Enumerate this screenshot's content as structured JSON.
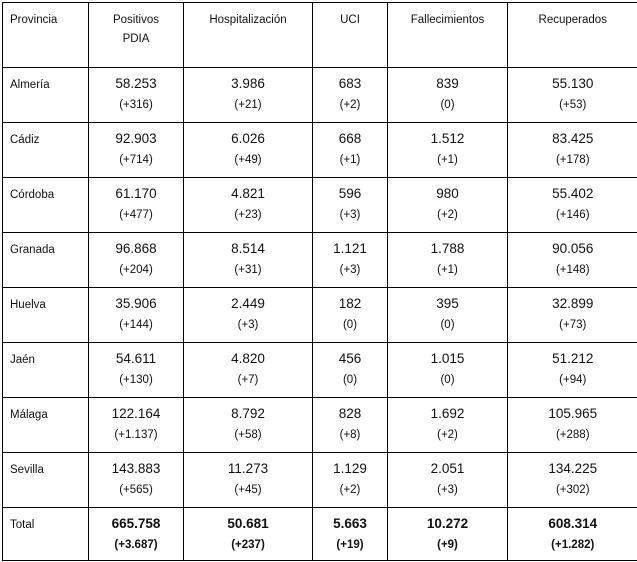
{
  "colors": {
    "text": "#111111",
    "border": "#000000",
    "background": "#ffffff"
  },
  "table": {
    "columns": [
      {
        "id": "provincia",
        "lines": [
          "Provincia"
        ]
      },
      {
        "id": "positivos-pdia",
        "lines": [
          "Positivos",
          "PDIA"
        ]
      },
      {
        "id": "hospitalizacion",
        "lines": [
          "Hospitalización"
        ]
      },
      {
        "id": "uci",
        "lines": [
          "UCI"
        ]
      },
      {
        "id": "fallecimientos",
        "lines": [
          "Fallecimientos"
        ]
      },
      {
        "id": "recuperados",
        "lines": [
          "Recuperados"
        ]
      }
    ],
    "rows": [
      {
        "province": "Almería",
        "cells": [
          [
            "58.253",
            "(+316)"
          ],
          [
            "3.986",
            "(+21)"
          ],
          [
            "683",
            "(+2)"
          ],
          [
            "839",
            "(0)"
          ],
          [
            "55.130",
            "(+53)"
          ]
        ]
      },
      {
        "province": "Cádiz",
        "cells": [
          [
            "92.903",
            "(+714)"
          ],
          [
            "6.026",
            "(+49)"
          ],
          [
            "668",
            "(+1)"
          ],
          [
            "1.512",
            "(+1)"
          ],
          [
            "83.425",
            "(+178)"
          ]
        ]
      },
      {
        "province": "Córdoba",
        "cells": [
          [
            "61.170",
            "(+477)"
          ],
          [
            "4.821",
            "(+23)"
          ],
          [
            "596",
            "(+3)"
          ],
          [
            "980",
            "(+2)"
          ],
          [
            "55.402",
            "(+146)"
          ]
        ]
      },
      {
        "province": "Granada",
        "cells": [
          [
            "96.868",
            "(+204)"
          ],
          [
            "8.514",
            "(+31)"
          ],
          [
            "1.121",
            "(+3)"
          ],
          [
            "1.788",
            "(+1)"
          ],
          [
            "90.056",
            "(+148)"
          ]
        ]
      },
      {
        "province": "Huelva",
        "cells": [
          [
            "35.906",
            "(+144)"
          ],
          [
            "2.449",
            "(+3)"
          ],
          [
            "182",
            "(0)"
          ],
          [
            "395",
            "(0)"
          ],
          [
            "32.899",
            "(+73)"
          ]
        ]
      },
      {
        "province": "Jaén",
        "cells": [
          [
            "54.611",
            "(+130)"
          ],
          [
            "4.820",
            "(+7)"
          ],
          [
            "456",
            "(0)"
          ],
          [
            "1.015",
            "(0)"
          ],
          [
            "51.212",
            "(+94)"
          ]
        ]
      },
      {
        "province": "Málaga",
        "cells": [
          [
            "122.164",
            "(+1.137)"
          ],
          [
            "8.792",
            "(+58)"
          ],
          [
            "828",
            "(+8)"
          ],
          [
            "1.692",
            "(+2)"
          ],
          [
            "105.965",
            "(+288)"
          ]
        ]
      },
      {
        "province": "Sevilla",
        "cells": [
          [
            "143.883",
            "(+565)"
          ],
          [
            "11.273",
            "(+45)"
          ],
          [
            "1.129",
            "(+2)"
          ],
          [
            "2.051",
            "(+3)"
          ],
          [
            "134.225",
            "(+302)"
          ]
        ]
      }
    ],
    "total": {
      "label": "Total",
      "cells": [
        [
          "665.758",
          "(+3.687)"
        ],
        [
          "50.681",
          "(+237)"
        ],
        [
          "5.663",
          "(+19)"
        ],
        [
          "10.272",
          "(+9)"
        ],
        [
          "608.314",
          "(+1.282)"
        ]
      ]
    }
  }
}
